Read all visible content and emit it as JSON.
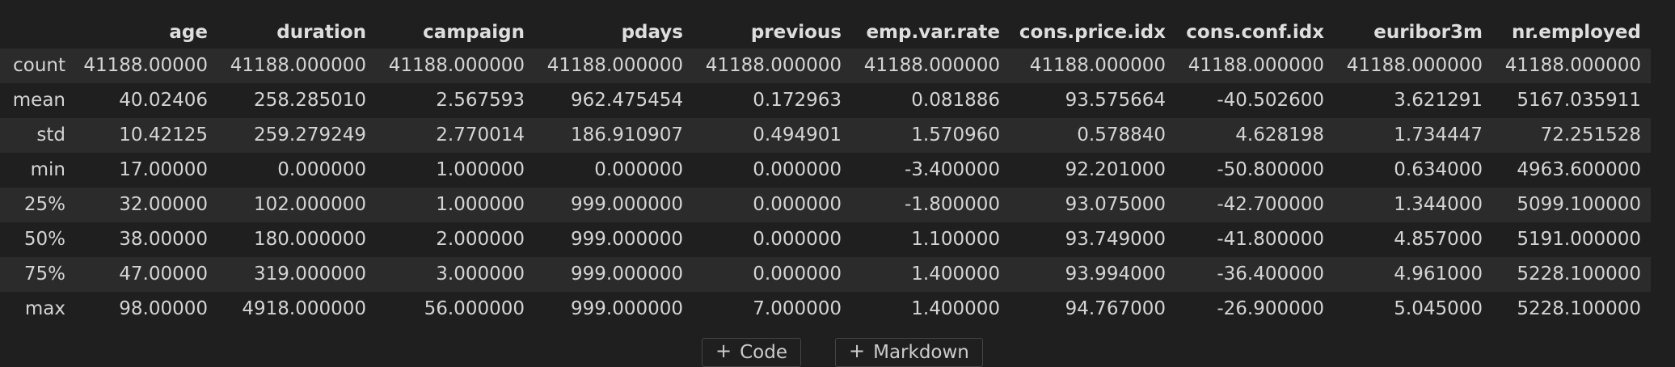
{
  "table": {
    "columns": [
      "age",
      "duration",
      "campaign",
      "pdays",
      "previous",
      "emp.var.rate",
      "cons.price.idx",
      "cons.conf.idx",
      "euribor3m",
      "nr.employed"
    ],
    "rows": [
      {
        "index": "count",
        "values": [
          "41188.00000",
          "41188.000000",
          "41188.000000",
          "41188.000000",
          "41188.000000",
          "41188.000000",
          "41188.000000",
          "41188.000000",
          "41188.000000",
          "41188.000000"
        ]
      },
      {
        "index": "mean",
        "values": [
          "40.02406",
          "258.285010",
          "2.567593",
          "962.475454",
          "0.172963",
          "0.081886",
          "93.575664",
          "-40.502600",
          "3.621291",
          "5167.035911"
        ]
      },
      {
        "index": "std",
        "values": [
          "10.42125",
          "259.279249",
          "2.770014",
          "186.910907",
          "0.494901",
          "1.570960",
          "0.578840",
          "4.628198",
          "1.734447",
          "72.251528"
        ]
      },
      {
        "index": "min",
        "values": [
          "17.00000",
          "0.000000",
          "1.000000",
          "0.000000",
          "0.000000",
          "-3.400000",
          "92.201000",
          "-50.800000",
          "0.634000",
          "4963.600000"
        ]
      },
      {
        "index": "25%",
        "values": [
          "32.00000",
          "102.000000",
          "1.000000",
          "999.000000",
          "0.000000",
          "-1.800000",
          "93.075000",
          "-42.700000",
          "1.344000",
          "5099.100000"
        ]
      },
      {
        "index": "50%",
        "values": [
          "38.00000",
          "180.000000",
          "2.000000",
          "999.000000",
          "0.000000",
          "1.100000",
          "93.749000",
          "-41.800000",
          "4.857000",
          "5191.000000"
        ]
      },
      {
        "index": "75%",
        "values": [
          "47.00000",
          "319.000000",
          "3.000000",
          "999.000000",
          "0.000000",
          "1.400000",
          "93.994000",
          "-36.400000",
          "4.961000",
          "5228.100000"
        ]
      },
      {
        "index": "max",
        "values": [
          "98.00000",
          "4918.000000",
          "56.000000",
          "999.000000",
          "7.000000",
          "1.400000",
          "94.767000",
          "-26.900000",
          "5.045000",
          "5228.100000"
        ]
      }
    ]
  },
  "toolbar": {
    "code_label": "Code",
    "markdown_label": "Markdown",
    "plus_glyph": "+"
  },
  "colors": {
    "background": "#1f1f1f",
    "row_stripe": "#2b2b2b",
    "text": "#d4d4d4"
  }
}
